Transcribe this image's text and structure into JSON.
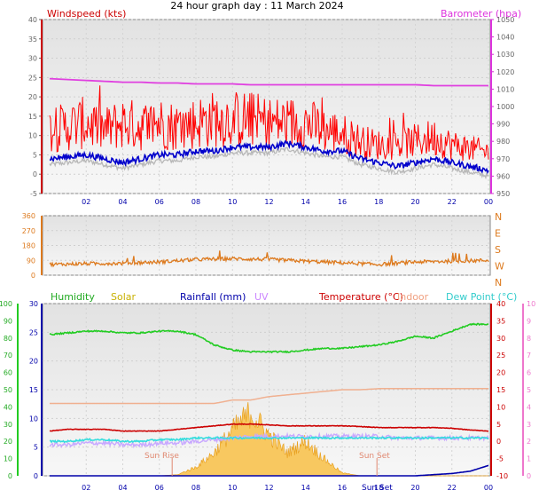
{
  "title": "24 hour graph day : 11 March 2024",
  "colors": {
    "wind_gust": "#ff0000",
    "wind_avg": "#0000cc",
    "wind_grey": "#b8b8b8",
    "barometer": "#e040e0",
    "direction": "#dd7a1e",
    "humidity": "#22cc22",
    "solar": "#d4b800",
    "solar_fill": "#f8c860",
    "rainfall": "#0000aa",
    "uv": "#c8a8ff",
    "temperature": "#cc0000",
    "indoor": "#f0b090",
    "dewpoint": "#33dddd",
    "panel_bg": "#e6e6e6"
  },
  "time_ticks": [
    "02",
    "04",
    "06",
    "08",
    "10",
    "12",
    "14",
    "16",
    "18",
    "20",
    "22",
    "00"
  ],
  "panels": {
    "wind": {
      "left_label": "Windspeed (kts)",
      "right_label": "Barometer (hpa)",
      "left_ticks": [
        "-5",
        "0",
        "5",
        "10",
        "15",
        "20",
        "25",
        "30",
        "35",
        "40"
      ],
      "right_ticks": [
        "950",
        "960",
        "970",
        "980",
        "990",
        "1000",
        "1010",
        "1020",
        "1030",
        "1040",
        "1050"
      ]
    },
    "direction": {
      "left_ticks": [
        "0",
        "90",
        "180",
        "270",
        "360"
      ],
      "right_ticks": [
        "N",
        "E",
        "S",
        "W",
        "N"
      ]
    },
    "env": {
      "legend": {
        "humidity": "Humidity",
        "solar": "Solar",
        "rainfall": "Rainfall (mm)",
        "uv": "UV",
        "temperature": "Temperature (°C)",
        "indoor": "Indoor",
        "dewpoint": "Dew Point (°C)"
      },
      "humidity_ticks": [
        "0",
        "10",
        "20",
        "30",
        "40",
        "50",
        "60",
        "70",
        "80",
        "90",
        "100"
      ],
      "rain_ticks": [
        "0",
        "5",
        "10",
        "15",
        "20",
        "25",
        "30"
      ],
      "temp_ticks": [
        "-10",
        "-5",
        "0",
        "5",
        "10",
        "15",
        "20",
        "25",
        "30",
        "35",
        "40"
      ],
      "uv_ticks": [
        "0",
        "1",
        "2",
        "3",
        "4",
        "5",
        "6",
        "7",
        "8",
        "9",
        "10"
      ],
      "sunrise_label": "Sun Rise",
      "sunset_label": "Sun Set",
      "sunset_axis_label": "Sun Set"
    }
  },
  "chart_data": [
    {
      "type": "line",
      "title": "24 hour graph day : 11 March 2024",
      "x_unit": "hour of day (00:00 11 March to 00:00 12 March)",
      "x": [
        0,
        1,
        2,
        3,
        4,
        5,
        6,
        7,
        8,
        9,
        10,
        11,
        12,
        13,
        14,
        15,
        16,
        17,
        18,
        19,
        20,
        21,
        22,
        23,
        24
      ],
      "ylabel": "Windspeed (kts)",
      "ylim": [
        -5,
        40
      ],
      "y2label": "Barometer (hpa)",
      "y2lim": [
        950,
        1050
      ],
      "series": [
        {
          "name": "gust",
          "axis": "left",
          "values": [
            12,
            13,
            14,
            12,
            14,
            13,
            14,
            13,
            14,
            15,
            15,
            15,
            14,
            14,
            14,
            12,
            11,
            9,
            8,
            8,
            9,
            10,
            8,
            7,
            6
          ]
        },
        {
          "name": "average",
          "axis": "left",
          "values": [
            4,
            4.5,
            5,
            4,
            3,
            4,
            5,
            5,
            6,
            6,
            7,
            7,
            7,
            8,
            7,
            6,
            6,
            4,
            3,
            2,
            3,
            4,
            3,
            2,
            1
          ]
        },
        {
          "name": "barometer",
          "axis": "right",
          "values": [
            1016,
            1015.5,
            1015,
            1014.5,
            1014,
            1014,
            1013.5,
            1013.5,
            1013,
            1013,
            1013,
            1012.5,
            1012.5,
            1012.5,
            1012.5,
            1012.5,
            1012.5,
            1012.5,
            1012.5,
            1012.5,
            1012.5,
            1012,
            1012,
            1012,
            1012
          ]
        }
      ]
    },
    {
      "type": "line",
      "series_name": "wind direction",
      "x": [
        0,
        2,
        4,
        6,
        8,
        10,
        12,
        14,
        16,
        18,
        20,
        22,
        24
      ],
      "values": [
        65,
        70,
        72,
        80,
        95,
        100,
        95,
        85,
        75,
        65,
        80,
        85,
        90
      ],
      "ylim": [
        0,
        360
      ]
    },
    {
      "type": "area",
      "x": [
        0,
        1,
        2,
        3,
        4,
        5,
        6,
        7,
        8,
        9,
        10,
        11,
        12,
        13,
        14,
        15,
        16,
        17,
        18,
        19,
        20,
        21,
        22,
        23,
        24
      ],
      "series": [
        {
          "name": "Humidity",
          "axis": "humidity",
          "values": [
            82,
            83,
            84,
            84,
            83,
            83,
            84,
            84,
            82,
            76,
            73,
            72,
            72,
            72,
            73,
            74,
            74,
            75,
            76,
            78,
            81,
            80,
            84,
            88,
            88
          ]
        },
        {
          "name": "Temperature (°C)",
          "axis": "temp",
          "values": [
            3,
            3.5,
            3.5,
            3.5,
            3,
            3,
            3,
            3.5,
            4,
            4.5,
            5,
            5,
            4.8,
            4.5,
            4.5,
            4.5,
            4.5,
            4.3,
            4,
            4,
            4,
            4,
            3.8,
            3.3,
            3
          ]
        },
        {
          "name": "Indoor",
          "axis": "temp",
          "values": [
            11,
            11,
            11,
            11,
            11,
            11,
            11,
            11,
            11,
            11,
            12,
            12,
            13,
            13.5,
            14,
            14.5,
            15,
            15,
            15.3,
            15.3,
            15.3,
            15.3,
            15.3,
            15.3,
            15.3
          ]
        },
        {
          "name": "Dew Point (°C)",
          "axis": "temp",
          "values": [
            0,
            0,
            0.5,
            0.5,
            0,
            0,
            0.5,
            0.5,
            1,
            1,
            1,
            1,
            1,
            1,
            1,
            1,
            1,
            1,
            1,
            1,
            1,
            1,
            1,
            1,
            1
          ]
        },
        {
          "name": "UV",
          "axis": "temp",
          "values": [
            -1,
            -1,
            -0.5,
            -0.5,
            -1,
            -1,
            -0.5,
            -0.5,
            0,
            0.5,
            1,
            1.5,
            1.5,
            1.5,
            1.5,
            1.5,
            1.5,
            1.5,
            1.5,
            1,
            1,
            1,
            1,
            1,
            1
          ]
        },
        {
          "name": "Solar",
          "axis": "rain",
          "values": [
            0,
            0,
            0,
            0,
            0,
            0,
            0,
            0.2,
            1.5,
            4,
            8,
            11,
            7,
            4,
            6,
            3,
            0.5,
            0,
            0,
            0,
            0,
            0,
            0,
            0,
            0
          ]
        },
        {
          "name": "Rainfall (mm)",
          "axis": "rain",
          "values": [
            0,
            0,
            0,
            0,
            0,
            0,
            0,
            0,
            0,
            0,
            0,
            0,
            0,
            0,
            0,
            0,
            0,
            0,
            0,
            0,
            0,
            0.2,
            0.4,
            0.8,
            1.8
          ]
        }
      ],
      "humidity_ylim": [
        0,
        100
      ],
      "rain_ylim": [
        0,
        30
      ],
      "temp_ylim": [
        -10,
        40
      ],
      "uv_ylim": [
        0,
        10
      ]
    }
  ]
}
